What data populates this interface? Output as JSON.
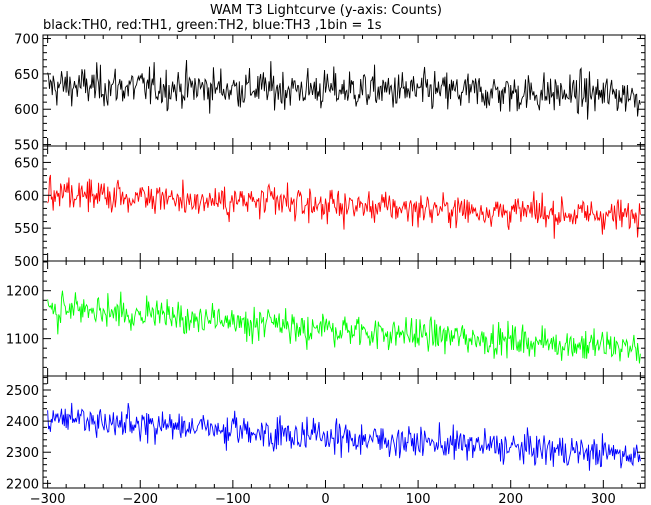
{
  "chart_data": {
    "type": "line",
    "title": "WAM T3 Lightcurve (y-axis: Counts)",
    "subtitle": "black:TH0, red:TH1, green:TH2, blue:TH3 ,1bin = 1s",
    "xlim": [
      -305,
      345
    ],
    "x_ticks": [
      -300,
      -200,
      -100,
      0,
      100,
      200,
      300
    ],
    "x_tick_labels": [
      "−300",
      "−200",
      "−100",
      "0",
      "100",
      "200",
      "300"
    ],
    "bin_seconds": 1,
    "panels": [
      {
        "series_name": "TH0",
        "color": "#000000",
        "ylim": [
          548,
          705
        ],
        "y_ticks": [
          550,
          600,
          650,
          700
        ],
        "y_tick_labels": [
          "550",
          "600",
          "650",
          "700"
        ],
        "trend": {
          "x": [
            -300,
            0,
            340
          ],
          "y": [
            633,
            628,
            620
          ]
        },
        "noise_amplitude": 25
      },
      {
        "series_name": "TH1",
        "color": "#ff0000",
        "ylim": [
          500,
          675
        ],
        "y_ticks": [
          500,
          550,
          600,
          650
        ],
        "y_tick_labels": [
          "500",
          "550",
          "600",
          "650"
        ],
        "trend": {
          "x": [
            -300,
            0,
            340
          ],
          "y": [
            603,
            585,
            568
          ]
        },
        "noise_amplitude": 22
      },
      {
        "series_name": "TH2",
        "color": "#00ff00",
        "ylim": [
          1022,
          1262
        ],
        "y_ticks": [
          1100,
          1200
        ],
        "y_tick_labels": [
          "1100",
          "1200"
        ],
        "trend": {
          "x": [
            -300,
            0,
            340
          ],
          "y": [
            1165,
            1120,
            1080
          ]
        },
        "noise_amplitude": 30
      },
      {
        "series_name": "TH3",
        "color": "#0000ff",
        "ylim": [
          2185,
          2545
        ],
        "y_ticks": [
          2200,
          2300,
          2400,
          2500
        ],
        "y_tick_labels": [
          "2200",
          "2300",
          "2400",
          "2500"
        ],
        "trend": {
          "x": [
            -300,
            0,
            340
          ],
          "y": [
            2410,
            2350,
            2290
          ]
        },
        "noise_amplitude": 45
      }
    ]
  }
}
